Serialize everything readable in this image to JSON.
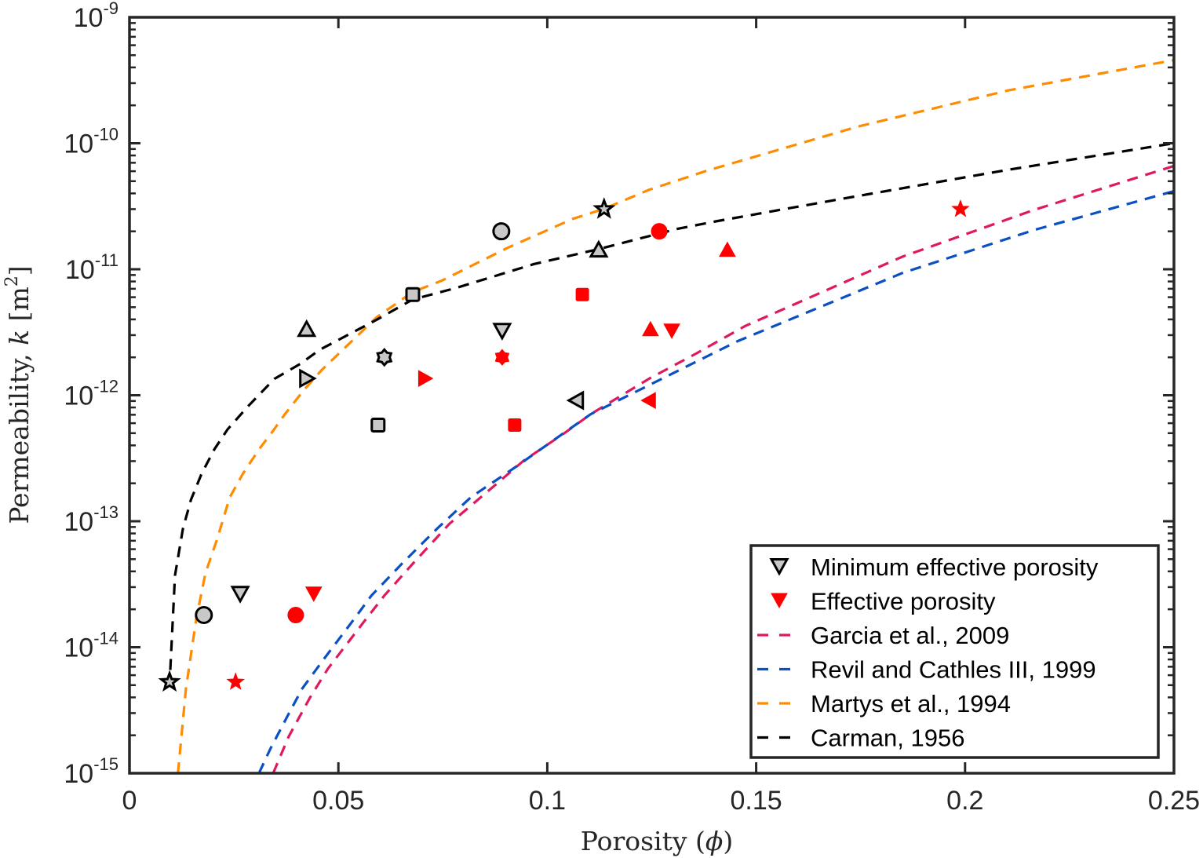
{
  "chart_data": {
    "type": "scatter",
    "xlabel": "Porosity (ϕ)",
    "ylabel": "Permeability, k [m²]",
    "ylabel_parts": {
      "main": "Permeability, ",
      "var": "k",
      "unit_open": " [m",
      "unit_sup": "2",
      "unit_close": "]"
    },
    "xlabel_parts": {
      "main": "Porosity (",
      "var": "ϕ",
      "close": ")"
    },
    "xlim": [
      0,
      0.25
    ],
    "ylim": [
      1e-15,
      1e-09
    ],
    "yscale": "log",
    "grid": false,
    "legend_position": "bottom-right",
    "x_ticks": [
      {
        "value": 0,
        "label": "0"
      },
      {
        "value": 0.05,
        "label": "0.05"
      },
      {
        "value": 0.1,
        "label": "0.1"
      },
      {
        "value": 0.15,
        "label": "0.15"
      },
      {
        "value": 0.2,
        "label": "0.2"
      },
      {
        "value": 0.25,
        "label": "0.25"
      }
    ],
    "y_ticks": [
      {
        "exp": -15,
        "label_base": "10",
        "label_exp": "-15"
      },
      {
        "exp": -14,
        "label_base": "10",
        "label_exp": "-14"
      },
      {
        "exp": -13,
        "label_base": "10",
        "label_exp": "-13"
      },
      {
        "exp": -12,
        "label_base": "10",
        "label_exp": "-12"
      },
      {
        "exp": -11,
        "label_base": "10",
        "label_exp": "-11"
      },
      {
        "exp": -10,
        "label_base": "10",
        "label_exp": "-10"
      },
      {
        "exp": -9,
        "label_base": "10",
        "label_exp": "-9"
      }
    ],
    "scatter_series": [
      {
        "name": "Minimum effective porosity",
        "fill": "#c8c8c8",
        "stroke": "#000000",
        "points": [
          {
            "x": 0.0096,
            "y": 5.3e-15,
            "marker": "pentagram"
          },
          {
            "x": 0.0178,
            "y": 1.8e-14,
            "marker": "circle"
          },
          {
            "x": 0.0265,
            "y": 2.7e-14,
            "marker": "triangle-down"
          },
          {
            "x": 0.0424,
            "y": 3.3e-12,
            "marker": "triangle-up"
          },
          {
            "x": 0.0423,
            "y": 1.36e-12,
            "marker": "triangle-right"
          },
          {
            "x": 0.0595,
            "y": 5.8e-13,
            "marker": "square"
          },
          {
            "x": 0.061,
            "y": 2e-12,
            "marker": "hexagram"
          },
          {
            "x": 0.0678,
            "y": 6.3e-12,
            "marker": "square"
          },
          {
            "x": 0.089,
            "y": 2e-11,
            "marker": "circle"
          },
          {
            "x": 0.0892,
            "y": 3.3e-12,
            "marker": "triangle-down"
          },
          {
            "x": 0.1071,
            "y": 9.1e-13,
            "marker": "triangle-left"
          },
          {
            "x": 0.1123,
            "y": 1.41e-11,
            "marker": "triangle-up"
          },
          {
            "x": 0.1136,
            "y": 3e-11,
            "marker": "pentagram"
          }
        ]
      },
      {
        "name": "Effective porosity",
        "fill": "#ff0000",
        "stroke": "#ff0000",
        "points": [
          {
            "x": 0.0254,
            "y": 5.3e-15,
            "marker": "pentagram"
          },
          {
            "x": 0.0398,
            "y": 1.8e-14,
            "marker": "circle"
          },
          {
            "x": 0.0441,
            "y": 2.7e-14,
            "marker": "triangle-down"
          },
          {
            "x": 0.0706,
            "y": 1.36e-12,
            "marker": "triangle-right"
          },
          {
            "x": 0.0892,
            "y": 2e-12,
            "marker": "hexagram"
          },
          {
            "x": 0.0922,
            "y": 5.8e-13,
            "marker": "square"
          },
          {
            "x": 0.1084,
            "y": 6.3e-12,
            "marker": "square"
          },
          {
            "x": 0.1245,
            "y": 9.1e-13,
            "marker": "triangle-left"
          },
          {
            "x": 0.1247,
            "y": 3.3e-12,
            "marker": "triangle-up"
          },
          {
            "x": 0.1268,
            "y": 2e-11,
            "marker": "circle"
          },
          {
            "x": 0.1298,
            "y": 3.3e-12,
            "marker": "triangle-down"
          },
          {
            "x": 0.1431,
            "y": 1.41e-11,
            "marker": "triangle-up"
          },
          {
            "x": 0.1989,
            "y": 3e-11,
            "marker": "pentagram"
          }
        ]
      }
    ],
    "line_series": [
      {
        "name": "Garcia et al., 2009",
        "color": "#e0195e",
        "style": "dashed",
        "points_log10k": [
          [
            0.0344,
            -15.0
          ],
          [
            0.0381,
            -14.71
          ],
          [
            0.0432,
            -14.4
          ],
          [
            0.0475,
            -14.17
          ],
          [
            0.0563,
            -13.79
          ],
          [
            0.061,
            -13.59
          ],
          [
            0.068,
            -13.33
          ],
          [
            0.0766,
            -13.02
          ],
          [
            0.0855,
            -12.77
          ],
          [
            0.0943,
            -12.52
          ],
          [
            0.1037,
            -12.31
          ],
          [
            0.1104,
            -12.15
          ],
          [
            0.1243,
            -11.87
          ],
          [
            0.1356,
            -11.67
          ],
          [
            0.1474,
            -11.45
          ],
          [
            0.185,
            -10.9
          ],
          [
            0.2164,
            -10.53
          ],
          [
            0.25,
            -10.18
          ]
        ]
      },
      {
        "name": "Revil and Cathles III, 1999",
        "color": "#0a4fc4",
        "style": "dashed",
        "points_log10k": [
          [
            0.031,
            -15.0
          ],
          [
            0.0338,
            -14.8
          ],
          [
            0.0376,
            -14.56
          ],
          [
            0.0413,
            -14.33
          ],
          [
            0.0464,
            -14.1
          ],
          [
            0.0539,
            -13.77
          ],
          [
            0.0579,
            -13.59
          ],
          [
            0.0654,
            -13.33
          ],
          [
            0.0736,
            -13.06
          ],
          [
            0.0817,
            -12.81
          ],
          [
            0.0924,
            -12.57
          ],
          [
            0.1018,
            -12.35
          ],
          [
            0.1104,
            -12.15
          ],
          [
            0.1292,
            -11.84
          ],
          [
            0.1456,
            -11.57
          ],
          [
            0.185,
            -11.03
          ],
          [
            0.2164,
            -10.69
          ],
          [
            0.25,
            -10.38
          ]
        ]
      },
      {
        "name": "Martys et al., 1994",
        "color": "#ff8c00",
        "style": "dashed",
        "points_log10k": [
          [
            0.0116,
            -15.0
          ],
          [
            0.0135,
            -14.33
          ],
          [
            0.016,
            -13.77
          ],
          [
            0.0182,
            -13.41
          ],
          [
            0.021,
            -13.14
          ],
          [
            0.024,
            -12.81
          ],
          [
            0.0272,
            -12.62
          ],
          [
            0.031,
            -12.43
          ],
          [
            0.0342,
            -12.29
          ],
          [
            0.0372,
            -12.15
          ],
          [
            0.0417,
            -11.96
          ],
          [
            0.046,
            -11.8
          ],
          [
            0.0592,
            -11.38
          ],
          [
            0.0678,
            -11.18
          ],
          [
            0.0748,
            -11.09
          ],
          [
            0.0905,
            -10.83
          ],
          [
            0.1061,
            -10.6
          ],
          [
            0.1136,
            -10.52
          ],
          [
            0.1243,
            -10.37
          ],
          [
            0.138,
            -10.22
          ],
          [
            0.1741,
            -9.87
          ],
          [
            0.2104,
            -9.58
          ],
          [
            0.25,
            -9.34
          ]
        ]
      },
      {
        "name": "Carman, 1956",
        "color": "#000000",
        "style": "dashed",
        "points_log10k": [
          [
            0.00977,
            -14.18
          ],
          [
            0.0109,
            -13.43
          ],
          [
            0.0128,
            -13.06
          ],
          [
            0.0147,
            -12.83
          ],
          [
            0.0173,
            -12.62
          ],
          [
            0.0203,
            -12.43
          ],
          [
            0.0235,
            -12.27
          ],
          [
            0.0286,
            -12.08
          ],
          [
            0.0347,
            -11.87
          ],
          [
            0.0409,
            -11.75
          ],
          [
            0.0455,
            -11.64
          ],
          [
            0.0592,
            -11.4
          ],
          [
            0.0678,
            -11.24
          ],
          [
            0.078,
            -11.15
          ],
          [
            0.0967,
            -10.96
          ],
          [
            0.1123,
            -10.84
          ],
          [
            0.1311,
            -10.68
          ],
          [
            0.1403,
            -10.62
          ],
          [
            0.1741,
            -10.42
          ],
          [
            0.2104,
            -10.21
          ],
          [
            0.25,
            -10.0
          ]
        ]
      }
    ],
    "legend": [
      {
        "label": "Minimum effective porosity",
        "kind": "marker",
        "marker": "triangle-down",
        "fill": "#c8c8c8",
        "stroke": "#000000"
      },
      {
        "label": "Effective porosity",
        "kind": "marker",
        "marker": "triangle-down",
        "fill": "#ff0000",
        "stroke": "#ff0000"
      },
      {
        "label": "Garcia et al., 2009",
        "kind": "line",
        "color": "#e0195e"
      },
      {
        "label": "Revil and Cathles III, 1999",
        "kind": "line",
        "color": "#0a4fc4"
      },
      {
        "label": "Martys et al., 1994",
        "kind": "line",
        "color": "#ff8c00"
      },
      {
        "label": "Carman, 1956",
        "kind": "line",
        "color": "#000000"
      }
    ]
  }
}
